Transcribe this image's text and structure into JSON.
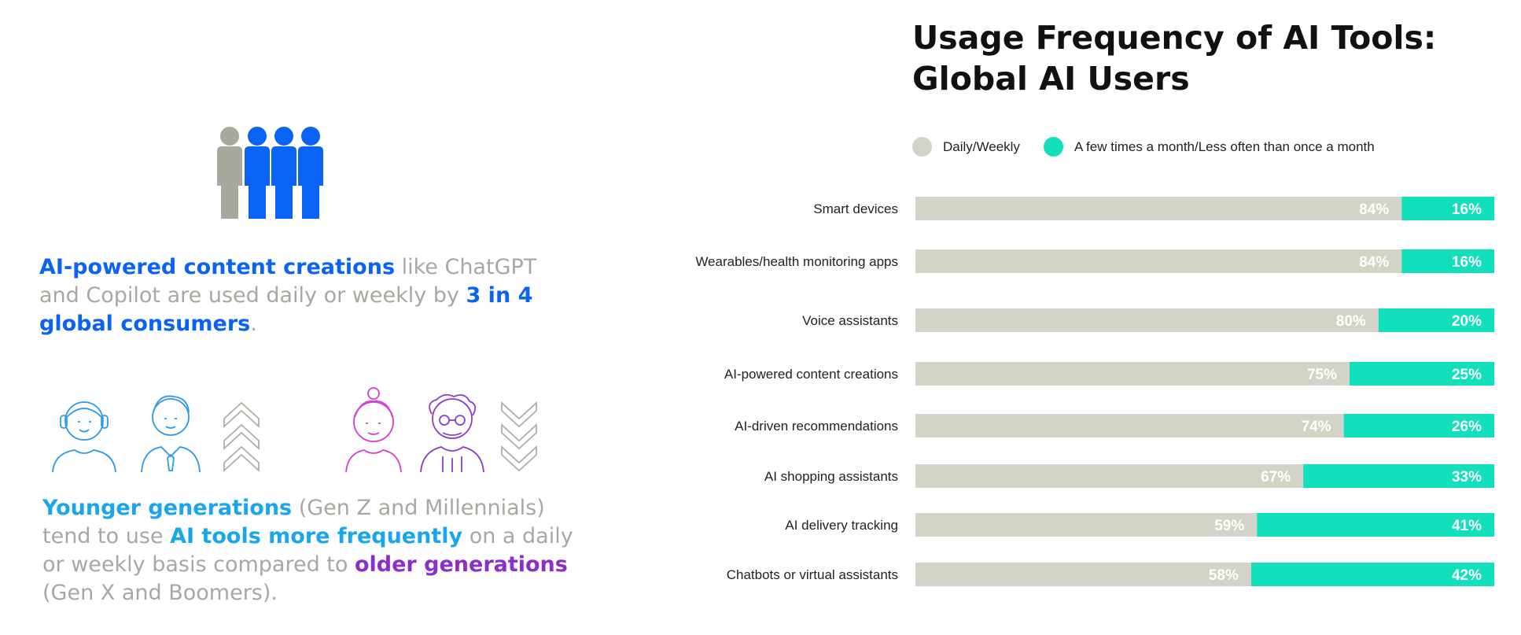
{
  "left": {
    "statement1": {
      "part1": "AI-powered content creations",
      "part2": " like ChatGPT and Copilot are used daily or weekly by ",
      "part3": "3 in 4 global consumers",
      "part4": "."
    },
    "statement2": {
      "part1": "Younger generations",
      "part2": " (Gen Z and Millennials) tend to use ",
      "part3": "AI tools more frequently",
      "part4": " on a daily or weekly basis compared to ",
      "part5": "older generations",
      "part6": " (Gen X and Boomers)."
    }
  },
  "colors": {
    "gray": "#d4d3c8",
    "teal": "#12e0bd",
    "people_gray": "#a8a89f",
    "people_blue": "#0b63f6",
    "young": "#2a9be8",
    "old_woman": "#d63fd0",
    "old_man": "#8a3fc9",
    "chevron": "#b0aea5"
  },
  "chart_data": {
    "type": "bar",
    "orientation": "horizontal",
    "stacked": true,
    "title": "Usage Frequency of AI Tools: Global AI Users",
    "title_lines": [
      "Usage Frequency of AI Tools:",
      "Global AI Users"
    ],
    "legend_position": "top",
    "categories": [
      "Smart devices",
      "Wearables/health monitoring apps",
      "Voice assistants",
      "AI-powered content creations",
      "AI-driven recommendations",
      "AI shopping assistants",
      "AI delivery tracking",
      "Chatbots or virtual assistants"
    ],
    "series": [
      {
        "name": "Daily/Weekly",
        "color": "#d4d3c8",
        "values": [
          84,
          84,
          80,
          75,
          74,
          67,
          59,
          58
        ]
      },
      {
        "name": "A few times a month/Less often than once a month",
        "color": "#12e0bd",
        "values": [
          16,
          16,
          20,
          25,
          26,
          33,
          41,
          42
        ]
      }
    ],
    "unit": "%",
    "xlim": [
      0,
      100
    ],
    "grid": false
  }
}
